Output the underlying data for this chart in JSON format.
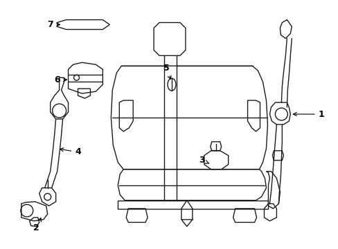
{
  "bg_color": "#ffffff",
  "line_color": "#1a1a1a",
  "label_color": "#000000",
  "fig_width": 4.89,
  "fig_height": 3.6,
  "dpi": 100,
  "lw": 1.0
}
